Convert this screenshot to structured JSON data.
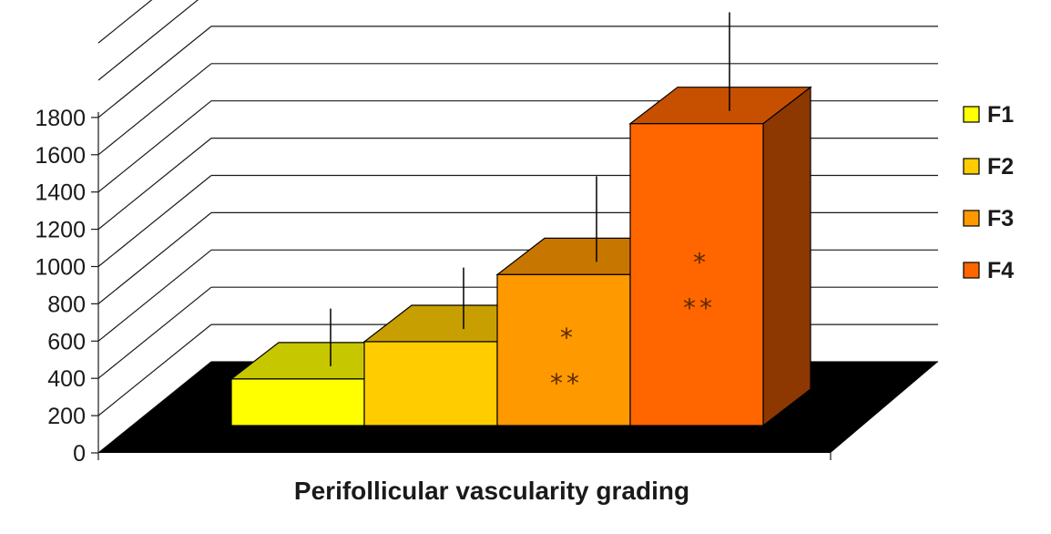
{
  "chart_data": {
    "type": "bar",
    "style": "3d",
    "categories": [
      "F1",
      "F2",
      "F3",
      "F4"
    ],
    "values": [
      250,
      450,
      810,
      1620
    ],
    "error_upper": [
      530,
      750,
      1240,
      2120
    ],
    "significance": [
      "",
      "",
      "* **",
      "* **"
    ],
    "xlabel": "Perifollicular vascularity grading",
    "ylabel": "",
    "ylim": [
      0,
      1800
    ],
    "yticks": [
      0,
      200,
      400,
      600,
      800,
      1000,
      1200,
      1400,
      1600,
      1800
    ],
    "grid": true,
    "legend": {
      "position": "right",
      "entries": [
        {
          "label": "F1",
          "color": "#ffff00"
        },
        {
          "label": "F2",
          "color": "#ffcc00"
        },
        {
          "label": "F3",
          "color": "#ff9900"
        },
        {
          "label": "F4",
          "color": "#ff6600"
        }
      ]
    },
    "colors": {
      "F1": "#ffff00",
      "F2": "#ffcc00",
      "F3": "#ff9900",
      "F4": "#ff6600",
      "floor": "#000000",
      "grid": "#1a1a1a"
    },
    "annotations": {
      "single": "*",
      "double": "**"
    }
  }
}
